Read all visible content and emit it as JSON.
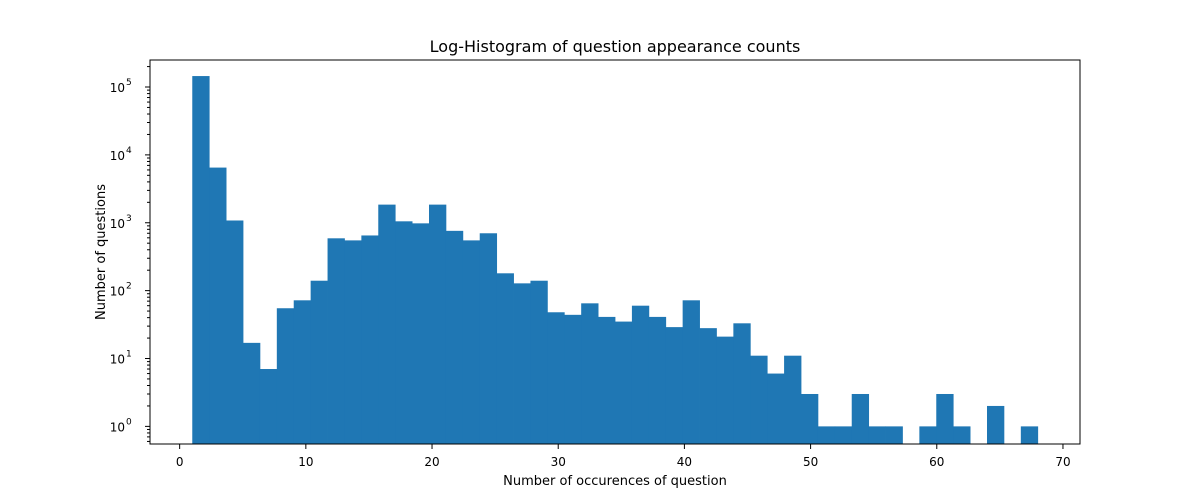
{
  "chart_data": {
    "type": "bar",
    "title": "Log-Histogram of question appearance counts",
    "xlabel": "Number of occurences of question",
    "ylabel": "Number of questions",
    "yscale": "log",
    "grid": false,
    "color": "#1f77b4",
    "xlim": [
      -2.35,
      71.35
    ],
    "ylim": [
      0.55,
      250000
    ],
    "xticks": [
      0,
      10,
      20,
      30,
      40,
      50,
      60,
      70
    ],
    "xtick_labels": [
      "0",
      "10",
      "20",
      "30",
      "40",
      "50",
      "60",
      "70"
    ],
    "yticks": [
      1,
      10,
      100,
      1000,
      10000,
      100000
    ],
    "ytick_labels": [
      {
        "base": "10",
        "exp": "0"
      },
      {
        "base": "10",
        "exp": "1"
      },
      {
        "base": "10",
        "exp": "2"
      },
      {
        "base": "10",
        "exp": "3"
      },
      {
        "base": "10",
        "exp": "4"
      },
      {
        "base": "10",
        "exp": "5"
      }
    ],
    "bin_start": 1,
    "bin_width": 1.34,
    "values": [
      145000,
      6500,
      1080,
      17,
      7,
      55,
      72,
      140,
      590,
      550,
      650,
      1850,
      1050,
      980,
      1850,
      760,
      550,
      700,
      180,
      128,
      140,
      48,
      44,
      65,
      41,
      35,
      60,
      41,
      29,
      72,
      28,
      21,
      33,
      11,
      6,
      11,
      3,
      1,
      1,
      3,
      1,
      1,
      0,
      1,
      3,
      1,
      0,
      2,
      0,
      1
    ]
  }
}
